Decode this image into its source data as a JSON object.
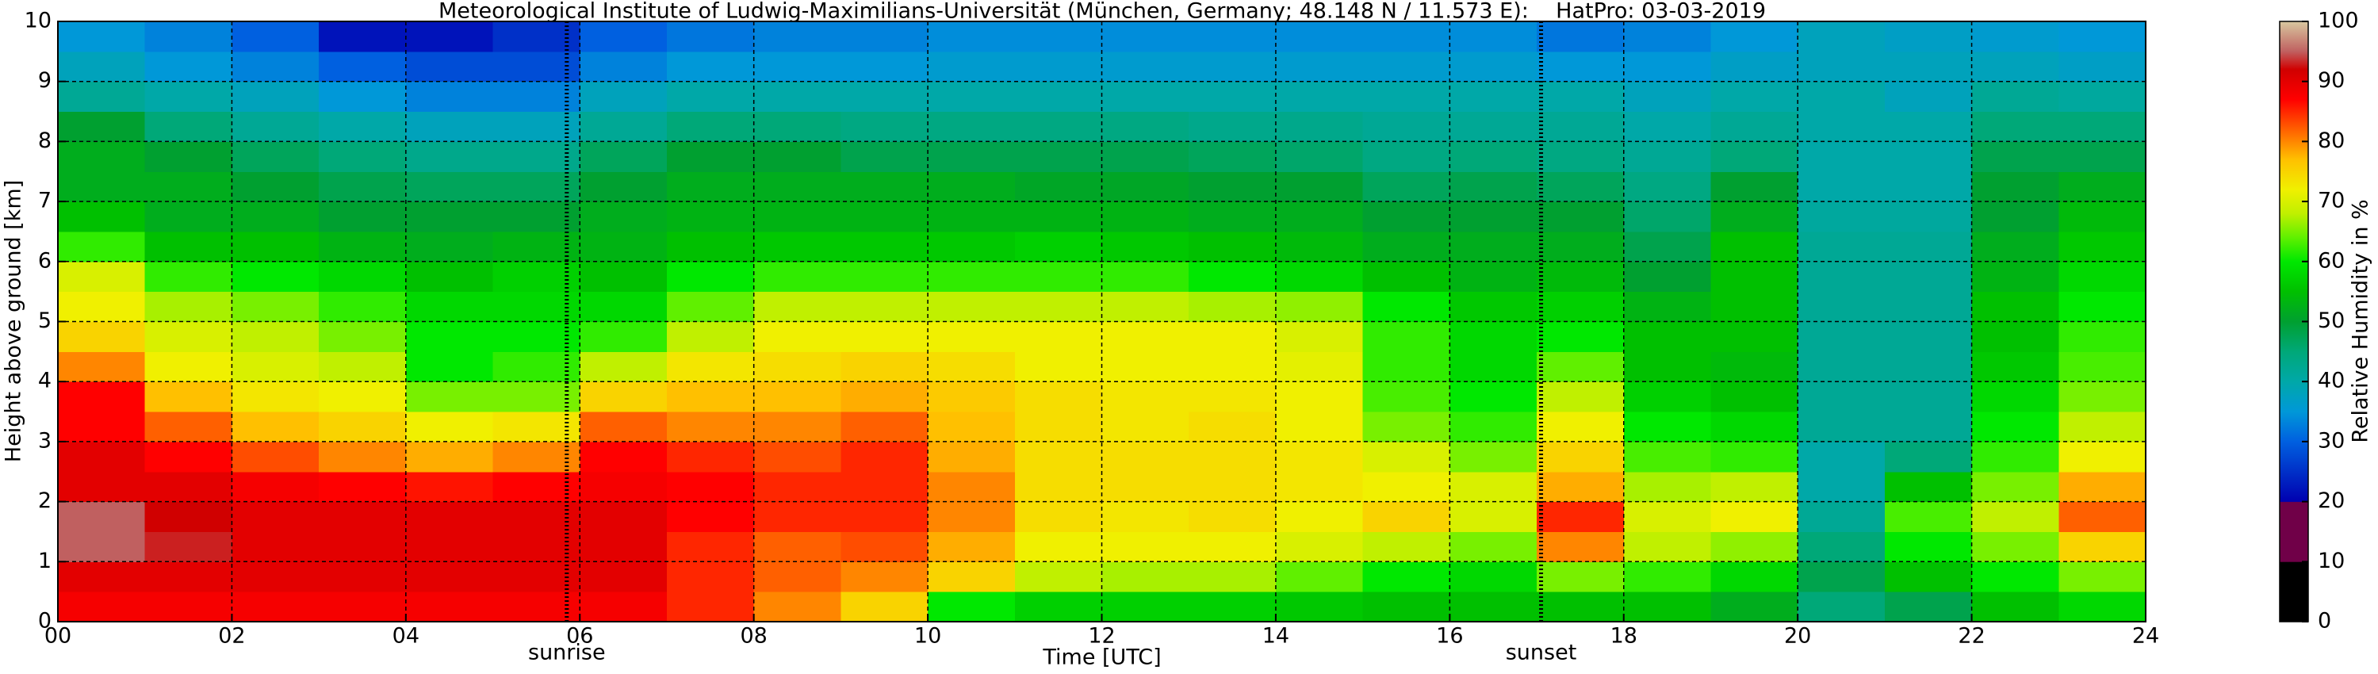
{
  "chart_data": {
    "type": "heatmap",
    "title": "Meteorological Institute of Ludwig-Maximilians-Universität (München, Germany; 48.148 N / 11.573 E):    HatPro: 03-03-2019",
    "x_label": "Time [UTC]",
    "y_label": "Height above ground [km]",
    "colorbar_label": "Relative Humidity in %",
    "xlim": [
      0,
      24
    ],
    "xticks": [
      {
        "value": 0,
        "label": "00"
      },
      {
        "value": 2,
        "label": "02"
      },
      {
        "value": 4,
        "label": "04"
      },
      {
        "value": 6,
        "label": "06"
      },
      {
        "value": 8,
        "label": "08"
      },
      {
        "value": 10,
        "label": "10"
      },
      {
        "value": 12,
        "label": "12"
      },
      {
        "value": 14,
        "label": "14"
      },
      {
        "value": 16,
        "label": "16"
      },
      {
        "value": 18,
        "label": "18"
      },
      {
        "value": 20,
        "label": "20"
      },
      {
        "value": 22,
        "label": "22"
      },
      {
        "value": 24,
        "label": "24"
      }
    ],
    "ylim": [
      0,
      10
    ],
    "yticks": [
      0,
      1,
      2,
      3,
      4,
      5,
      6,
      7,
      8,
      9,
      10
    ],
    "clim": [
      0,
      100
    ],
    "cticks": [
      0,
      10,
      20,
      30,
      40,
      50,
      60,
      70,
      80,
      90,
      100
    ],
    "grid": true,
    "colorscale": [
      [
        0,
        "#000000"
      ],
      [
        9.9,
        "#000000"
      ],
      [
        10,
        "#700048"
      ],
      [
        19.9,
        "#700048"
      ],
      [
        20,
        "#0000b0"
      ],
      [
        30,
        "#0060e0"
      ],
      [
        35,
        "#0098d8"
      ],
      [
        40,
        "#00a8a8"
      ],
      [
        45,
        "#00a878"
      ],
      [
        50,
        "#00a030"
      ],
      [
        55,
        "#00c000"
      ],
      [
        60,
        "#00e800"
      ],
      [
        64,
        "#60f000"
      ],
      [
        68,
        "#c0f000"
      ],
      [
        72,
        "#f0f000"
      ],
      [
        77,
        "#ffc000"
      ],
      [
        82,
        "#ff6000"
      ],
      [
        87,
        "#ff0000"
      ],
      [
        92,
        "#d00000"
      ],
      [
        95,
        "#c06060"
      ],
      [
        100,
        "#d8c8a0"
      ]
    ],
    "annotations": [
      {
        "text": "sunrise",
        "x": 5.85
      },
      {
        "text": "sunset",
        "x": 17.05
      }
    ],
    "z": [
      [
        88,
        90,
        95,
        95,
        90,
        90,
        87,
        87,
        80,
        75,
        72,
        70,
        62,
        55,
        52,
        52,
        50,
        42,
        38,
        35
      ],
      [
        88,
        90,
        93,
        92,
        90,
        87,
        82,
        77,
        72,
        70,
        67,
        62,
        55,
        52,
        52,
        50,
        45,
        40,
        35,
        33
      ],
      [
        88,
        90,
        90,
        90,
        88,
        83,
        77,
        73,
        70,
        68,
        65,
        60,
        55,
        52,
        50,
        47,
        42,
        38,
        33,
        30
      ],
      [
        88,
        90,
        90,
        90,
        87,
        80,
        75,
        72,
        68,
        65,
        62,
        58,
        53,
        50,
        48,
        45,
        40,
        35,
        30,
        22
      ],
      [
        88,
        90,
        90,
        90,
        86,
        78,
        72,
        65,
        60,
        60,
        58,
        55,
        52,
        50,
        47,
        43,
        38,
        33,
        28,
        22
      ],
      [
        88,
        90,
        90,
        90,
        87,
        80,
        73,
        65,
        62,
        60,
        58,
        57,
        53,
        50,
        47,
        43,
        38,
        33,
        28,
        25
      ],
      [
        88,
        90,
        90,
        90,
        88,
        87,
        82,
        75,
        68,
        62,
        58,
        55,
        53,
        52,
        50,
        47,
        42,
        38,
        33,
        30
      ],
      [
        85,
        85,
        85,
        87,
        87,
        85,
        80,
        77,
        73,
        68,
        64,
        60,
        55,
        53,
        52,
        50,
        45,
        40,
        35,
        32
      ],
      [
        80,
        82,
        82,
        85,
        85,
        83,
        80,
        77,
        74,
        72,
        68,
        62,
        56,
        53,
        52,
        50,
        45,
        40,
        35,
        33
      ],
      [
        75,
        80,
        83,
        85,
        85,
        85,
        82,
        78,
        75,
        72,
        68,
        62,
        56,
        53,
        52,
        48,
        44,
        40,
        35,
        33
      ],
      [
        60,
        75,
        78,
        80,
        80,
        78,
        77,
        76,
        74,
        72,
        68,
        62,
        56,
        53,
        52,
        48,
        44,
        40,
        36,
        34
      ],
      [
        57,
        68,
        72,
        74,
        74,
        74,
        74,
        74,
        72,
        72,
        68,
        62,
        57,
        53,
        51,
        48,
        44,
        40,
        36,
        34
      ],
      [
        57,
        67,
        72,
        73,
        74,
        74,
        73,
        73,
        72,
        72,
        68,
        62,
        56,
        53,
        51,
        48,
        44,
        40,
        36,
        34
      ],
      [
        57,
        67,
        72,
        74,
        74,
        74,
        74,
        73,
        72,
        72,
        67,
        60,
        55,
        52,
        50,
        47,
        43,
        40,
        36,
        34
      ],
      [
        56,
        64,
        70,
        72,
        73,
        73,
        72,
        72,
        71,
        70,
        66,
        58,
        54,
        52,
        50,
        46,
        43,
        40,
        36,
        34
      ],
      [
        55,
        60,
        68,
        75,
        72,
        70,
        65,
        63,
        62,
        62,
        60,
        55,
        52,
        50,
        47,
        44,
        42,
        40,
        36,
        34
      ],
      [
        55,
        58,
        65,
        70,
        70,
        65,
        62,
        60,
        58,
        58,
        56,
        53,
        52,
        50,
        48,
        45,
        42,
        40,
        36,
        34
      ],
      [
        55,
        65,
        80,
        85,
        78,
        75,
        72,
        68,
        64,
        60,
        57,
        54,
        52,
        50,
        47,
        44,
        42,
        40,
        35,
        32
      ],
      [
        55,
        62,
        68,
        70,
        67,
        63,
        60,
        57,
        55,
        55,
        53,
        50,
        48,
        46,
        44,
        42,
        40,
        38,
        35,
        33
      ],
      [
        52,
        58,
        66,
        72,
        68,
        62,
        58,
        55,
        54,
        55,
        55,
        55,
        55,
        52,
        50,
        45,
        42,
        40,
        37,
        35
      ],
      [
        45,
        48,
        45,
        42,
        40,
        40,
        42,
        42,
        42,
        42,
        42,
        42,
        42,
        41,
        40,
        40,
        40,
        40,
        38,
        38
      ],
      [
        48,
        55,
        60,
        63,
        55,
        45,
        42,
        42,
        42,
        42,
        42,
        42,
        42,
        41,
        40,
        40,
        40,
        38,
        38,
        37
      ],
      [
        55,
        60,
        65,
        68,
        65,
        62,
        60,
        58,
        56,
        55,
        55,
        53,
        52,
        50,
        50,
        48,
        45,
        42,
        38,
        36
      ],
      [
        58,
        65,
        75,
        82,
        78,
        72,
        68,
        65,
        63,
        62,
        60,
        58,
        56,
        54,
        52,
        48,
        45,
        41,
        37,
        35
      ]
    ]
  }
}
